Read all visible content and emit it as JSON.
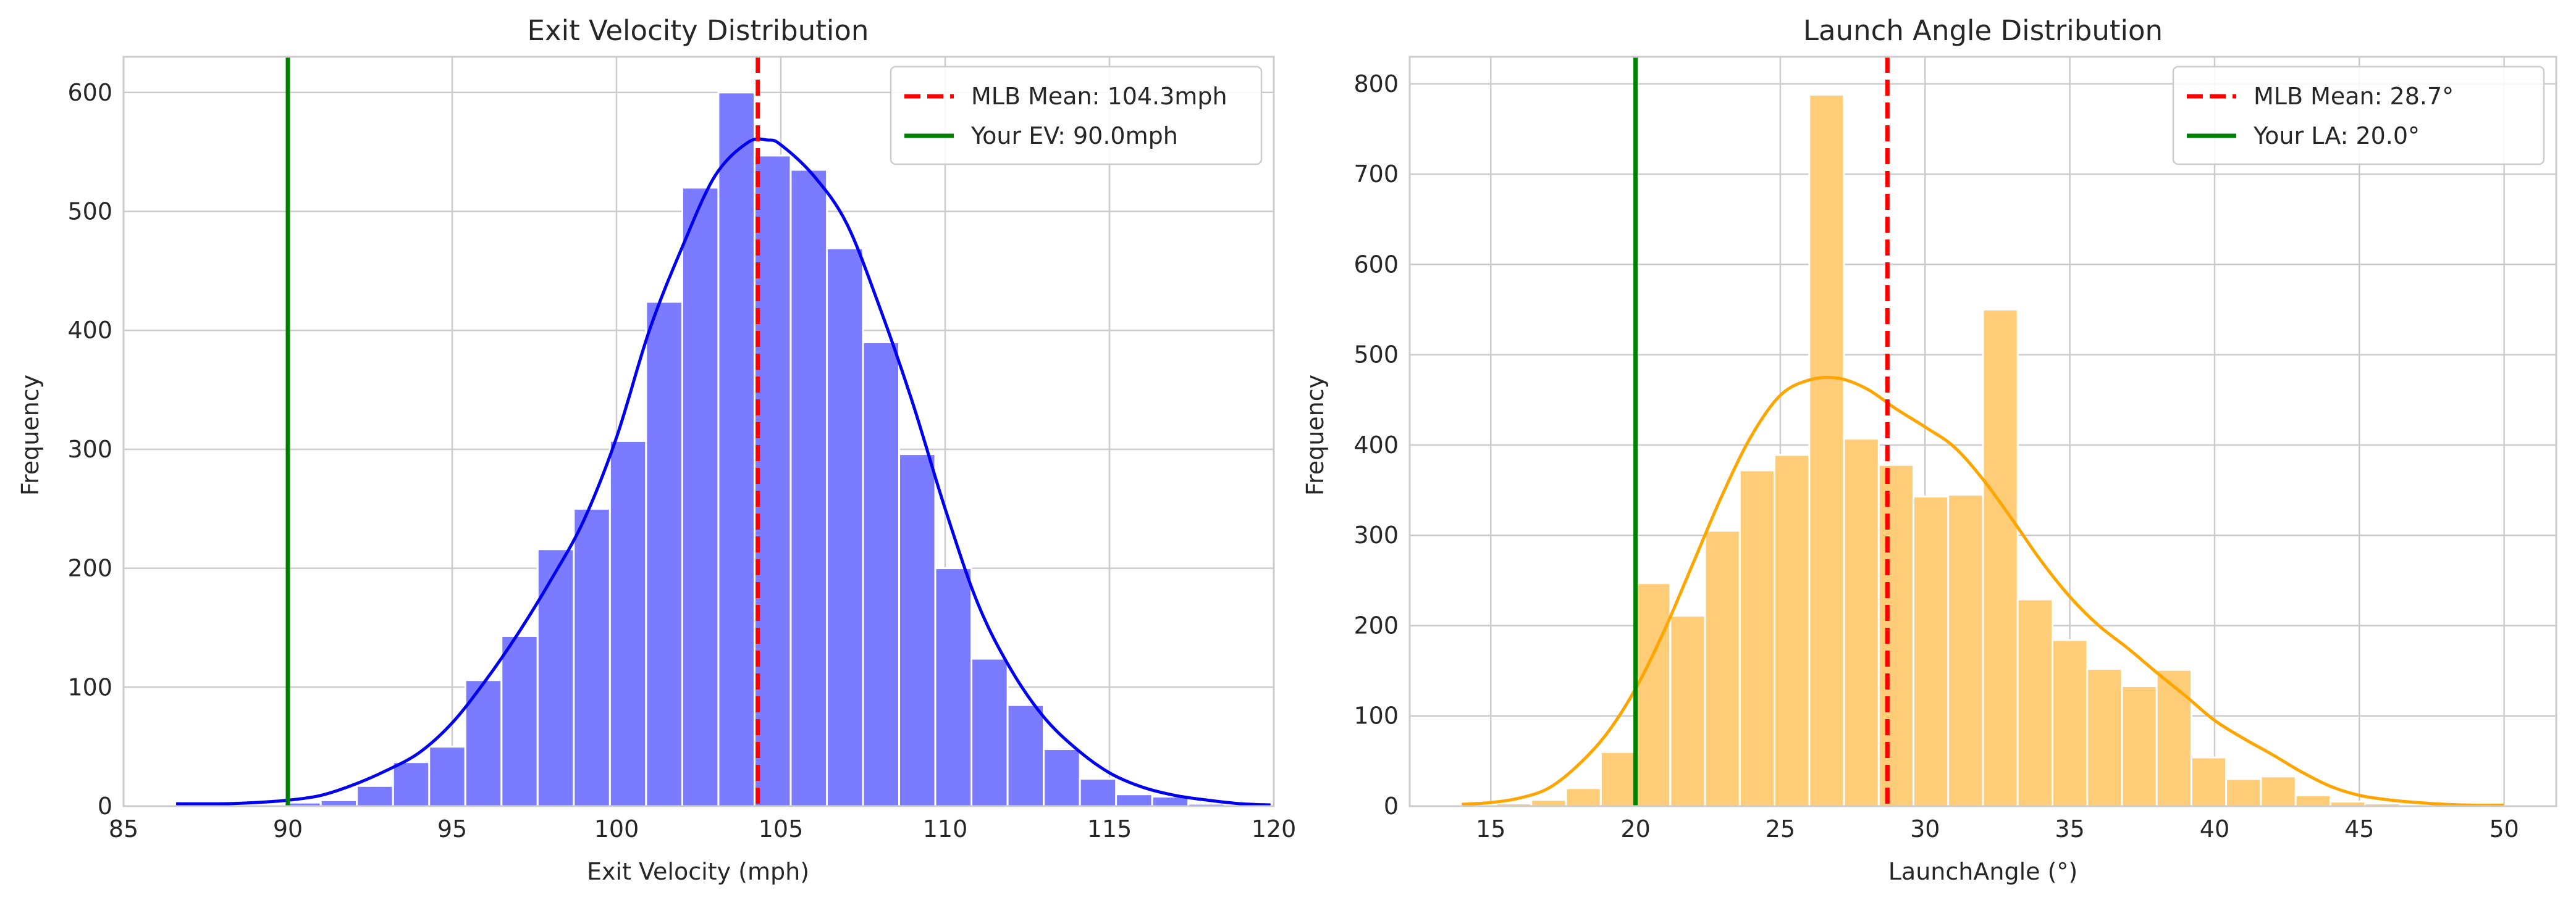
{
  "chart_data": [
    {
      "type": "bar",
      "title": "Exit Velocity Distribution",
      "xlabel": "Exit Velocity (mph)",
      "ylabel": "Frequency",
      "xlim": [
        85,
        120
      ],
      "ylim": [
        0,
        630
      ],
      "xticks": [
        85,
        90,
        95,
        100,
        105,
        110,
        115,
        120
      ],
      "yticks": [
        0,
        100,
        200,
        300,
        400,
        500,
        600
      ],
      "grid": true,
      "legend_position": "top-right",
      "bar_color": "#7b7bff",
      "kde_color": "#0000ee",
      "bins": [
        {
          "x0": 86.6,
          "x1": 87.7,
          "count": 1
        },
        {
          "x0": 87.7,
          "x1": 88.8,
          "count": 0
        },
        {
          "x0": 88.8,
          "x1": 89.9,
          "count": 1
        },
        {
          "x0": 89.9,
          "x1": 91.0,
          "count": 3
        },
        {
          "x0": 91.0,
          "x1": 92.1,
          "count": 5
        },
        {
          "x0": 92.1,
          "x1": 93.2,
          "count": 17
        },
        {
          "x0": 93.2,
          "x1": 94.3,
          "count": 37
        },
        {
          "x0": 94.3,
          "x1": 95.4,
          "count": 50
        },
        {
          "x0": 95.4,
          "x1": 96.5,
          "count": 106
        },
        {
          "x0": 96.5,
          "x1": 97.6,
          "count": 143
        },
        {
          "x0": 97.6,
          "x1": 98.7,
          "count": 216
        },
        {
          "x0": 98.7,
          "x1": 99.8,
          "count": 250
        },
        {
          "x0": 99.8,
          "x1": 100.9,
          "count": 307
        },
        {
          "x0": 100.9,
          "x1": 102.0,
          "count": 424
        },
        {
          "x0": 102.0,
          "x1": 103.1,
          "count": 520
        },
        {
          "x0": 103.1,
          "x1": 104.2,
          "count": 600
        },
        {
          "x0": 104.2,
          "x1": 105.3,
          "count": 547
        },
        {
          "x0": 105.3,
          "x1": 106.4,
          "count": 535
        },
        {
          "x0": 106.4,
          "x1": 107.5,
          "count": 469
        },
        {
          "x0": 107.5,
          "x1": 108.6,
          "count": 390
        },
        {
          "x0": 108.6,
          "x1": 109.7,
          "count": 296
        },
        {
          "x0": 109.7,
          "x1": 110.8,
          "count": 200
        },
        {
          "x0": 110.8,
          "x1": 111.9,
          "count": 124
        },
        {
          "x0": 111.9,
          "x1": 113.0,
          "count": 85
        },
        {
          "x0": 113.0,
          "x1": 114.1,
          "count": 48
        },
        {
          "x0": 114.1,
          "x1": 115.2,
          "count": 23
        },
        {
          "x0": 115.2,
          "x1": 116.3,
          "count": 10
        },
        {
          "x0": 116.3,
          "x1": 117.4,
          "count": 8
        },
        {
          "x0": 117.4,
          "x1": 118.5,
          "count": 2
        },
        {
          "x0": 118.5,
          "x1": 119.9,
          "count": 1
        }
      ],
      "kde": {
        "x": [
          86.6,
          88,
          89,
          90,
          91,
          92,
          93,
          94,
          95,
          96,
          97,
          98,
          99,
          100,
          101,
          102,
          103,
          104,
          104.6,
          105,
          106,
          107,
          108,
          109,
          110,
          111,
          112,
          113,
          114,
          115,
          116,
          117,
          118,
          119,
          119.9
        ],
        "y": [
          2,
          2,
          3,
          5,
          9,
          18,
          30,
          45,
          70,
          105,
          145,
          190,
          240,
          310,
          400,
          470,
          530,
          558,
          560,
          556,
          530,
          490,
          420,
          340,
          250,
          170,
          115,
          75,
          48,
          28,
          16,
          9,
          5,
          2,
          1
        ]
      },
      "lines": [
        {
          "label": "MLB Mean: 104.3mph",
          "x": 104.3,
          "color": "#ff0000",
          "style": "dashed"
        },
        {
          "label": "Your EV: 90.0mph",
          "x": 90.0,
          "color": "#008000",
          "style": "solid"
        }
      ]
    },
    {
      "type": "bar",
      "title": "Launch Angle Distribution",
      "xlabel": "LaunchAngle (°)",
      "ylabel": "Frequency",
      "xlim": [
        12.2,
        51.8
      ],
      "ylim": [
        0,
        830
      ],
      "xticks": [
        15,
        20,
        25,
        30,
        35,
        40,
        45,
        50
      ],
      "yticks": [
        0,
        100,
        200,
        300,
        400,
        500,
        600,
        700,
        800
      ],
      "grid": true,
      "legend_position": "top-right",
      "bar_color": "#ffcd78",
      "kde_color": "#ffa500",
      "bins": [
        {
          "x0": 14.0,
          "x1": 15.2,
          "count": 1
        },
        {
          "x0": 15.2,
          "x1": 16.4,
          "count": 3
        },
        {
          "x0": 16.4,
          "x1": 17.6,
          "count": 7
        },
        {
          "x0": 17.6,
          "x1": 18.8,
          "count": 20
        },
        {
          "x0": 18.8,
          "x1": 20.0,
          "count": 60
        },
        {
          "x0": 20.0,
          "x1": 21.2,
          "count": 247
        },
        {
          "x0": 21.2,
          "x1": 22.4,
          "count": 211
        },
        {
          "x0": 22.4,
          "x1": 23.6,
          "count": 305
        },
        {
          "x0": 23.6,
          "x1": 24.8,
          "count": 372
        },
        {
          "x0": 24.8,
          "x1": 26.0,
          "count": 389
        },
        {
          "x0": 26.0,
          "x1": 27.2,
          "count": 788
        },
        {
          "x0": 27.2,
          "x1": 28.4,
          "count": 407
        },
        {
          "x0": 28.4,
          "x1": 29.6,
          "count": 378
        },
        {
          "x0": 29.6,
          "x1": 30.8,
          "count": 343
        },
        {
          "x0": 30.8,
          "x1": 32.0,
          "count": 345
        },
        {
          "x0": 32.0,
          "x1": 33.2,
          "count": 550
        },
        {
          "x0": 33.2,
          "x1": 34.4,
          "count": 229
        },
        {
          "x0": 34.4,
          "x1": 35.6,
          "count": 184
        },
        {
          "x0": 35.6,
          "x1": 36.8,
          "count": 152
        },
        {
          "x0": 36.8,
          "x1": 38.0,
          "count": 133
        },
        {
          "x0": 38.0,
          "x1": 39.2,
          "count": 151
        },
        {
          "x0": 39.2,
          "x1": 40.4,
          "count": 54
        },
        {
          "x0": 40.4,
          "x1": 41.6,
          "count": 30
        },
        {
          "x0": 41.6,
          "x1": 42.8,
          "count": 33
        },
        {
          "x0": 42.8,
          "x1": 44.0,
          "count": 12
        },
        {
          "x0": 44.0,
          "x1": 45.2,
          "count": 5
        },
        {
          "x0": 45.2,
          "x1": 46.4,
          "count": 3
        },
        {
          "x0": 46.4,
          "x1": 47.6,
          "count": 1
        },
        {
          "x0": 47.6,
          "x1": 48.8,
          "count": 1
        },
        {
          "x0": 48.8,
          "x1": 50.0,
          "count": 1
        }
      ],
      "kde": {
        "x": [
          14,
          15,
          16,
          17,
          18,
          19,
          20,
          21,
          22,
          23,
          24,
          25,
          26,
          27,
          28,
          29,
          30,
          31,
          32,
          33,
          34,
          35,
          36,
          37,
          38,
          39,
          40,
          41,
          42,
          43,
          44,
          45,
          46,
          47,
          48,
          49,
          50
        ],
        "y": [
          2,
          4,
          9,
          20,
          45,
          80,
          130,
          195,
          270,
          345,
          410,
          455,
          472,
          474,
          462,
          440,
          420,
          398,
          362,
          318,
          272,
          232,
          200,
          175,
          148,
          122,
          95,
          75,
          57,
          38,
          22,
          12,
          7,
          4,
          2,
          1,
          1
        ]
      },
      "lines": [
        {
          "label": "MLB Mean: 28.7°",
          "x": 28.7,
          "color": "#ff0000",
          "style": "dashed"
        },
        {
          "label": "Your LA: 20.0°",
          "x": 20.0,
          "color": "#008000",
          "style": "solid"
        }
      ]
    }
  ]
}
